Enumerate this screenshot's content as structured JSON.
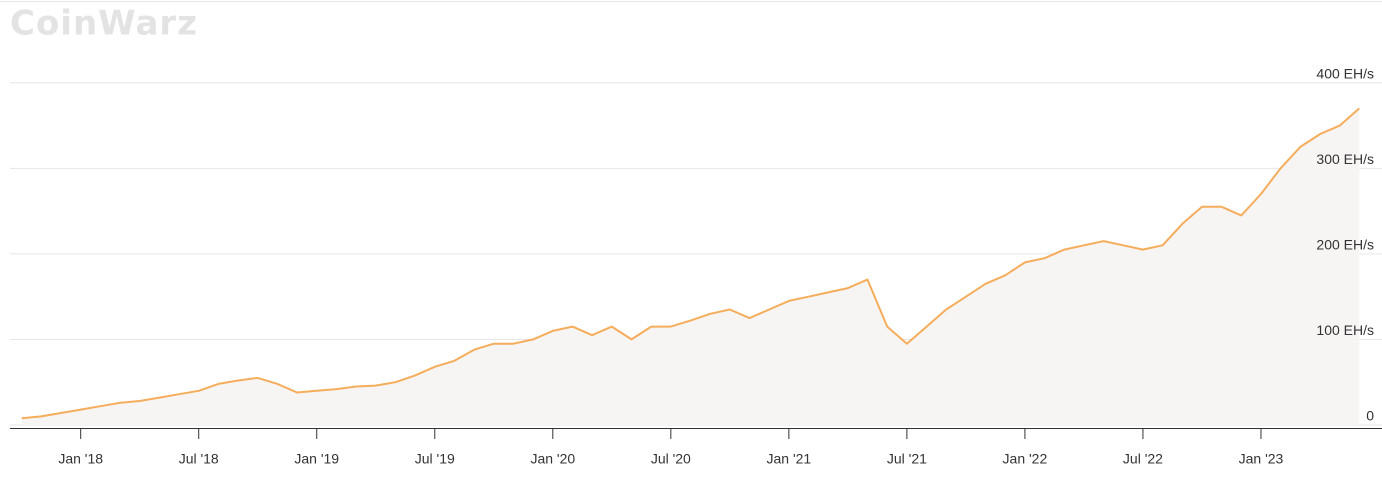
{
  "chart_data": {
    "type": "area",
    "watermark": "CoinWarz",
    "x": [
      "2017-10",
      "2017-11",
      "2017-12",
      "2018-01",
      "2018-02",
      "2018-03",
      "2018-04",
      "2018-05",
      "2018-06",
      "2018-07",
      "2018-08",
      "2018-09",
      "2018-10",
      "2018-11",
      "2018-12",
      "2019-01",
      "2019-02",
      "2019-03",
      "2019-04",
      "2019-05",
      "2019-06",
      "2019-07",
      "2019-08",
      "2019-09",
      "2019-10",
      "2019-11",
      "2019-12",
      "2020-01",
      "2020-02",
      "2020-03",
      "2020-04",
      "2020-05",
      "2020-06",
      "2020-07",
      "2020-08",
      "2020-09",
      "2020-10",
      "2020-11",
      "2020-12",
      "2021-01",
      "2021-02",
      "2021-03",
      "2021-04",
      "2021-05",
      "2021-06",
      "2021-07",
      "2021-08",
      "2021-09",
      "2021-10",
      "2021-11",
      "2021-12",
      "2022-01",
      "2022-02",
      "2022-03",
      "2022-04",
      "2022-05",
      "2022-06",
      "2022-07",
      "2022-08",
      "2022-09",
      "2022-10",
      "2022-11",
      "2022-12",
      "2023-01",
      "2023-02",
      "2023-03",
      "2023-04",
      "2023-05",
      "2023-06"
    ],
    "series": [
      {
        "color": "#f5ad5b",
        "values": [
          8,
          10,
          14,
          18,
          22,
          26,
          28,
          32,
          36,
          40,
          48,
          52,
          55,
          48,
          38,
          40,
          42,
          45,
          46,
          50,
          58,
          68,
          75,
          88,
          95,
          95,
          100,
          110,
          115,
          105,
          115,
          100,
          115,
          115,
          122,
          130,
          135,
          125,
          135,
          145,
          150,
          155,
          160,
          170,
          115,
          95,
          115,
          135,
          150,
          165,
          175,
          190,
          195,
          205,
          210,
          215,
          210,
          205,
          210,
          235,
          255,
          255,
          245,
          270,
          300,
          325,
          340,
          350,
          370
        ]
      }
    ],
    "area_color": "#f7f5f4",
    "xlim": [
      "2017-09",
      "2023-07"
    ],
    "xticks": [
      {
        "value": "2018-01",
        "label": "Jan '18"
      },
      {
        "value": "2018-07",
        "label": "Jul '18"
      },
      {
        "value": "2019-01",
        "label": "Jan '19"
      },
      {
        "value": "2019-07",
        "label": "Jul '19"
      },
      {
        "value": "2020-01",
        "label": "Jan '20"
      },
      {
        "value": "2020-07",
        "label": "Jul '20"
      },
      {
        "value": "2021-01",
        "label": "Jan '21"
      },
      {
        "value": "2021-07",
        "label": "Jul '21"
      },
      {
        "value": "2022-01",
        "label": "Jan '22"
      },
      {
        "value": "2022-07",
        "label": "Jul '22"
      },
      {
        "value": "2023-01",
        "label": "Jan '23"
      }
    ],
    "ylim": [
      0,
      450
    ],
    "yticks": [
      0,
      {
        "value": 100,
        "label": "100 EH/s"
      },
      {
        "value": 200,
        "label": "200 EH/s"
      },
      {
        "value": 300,
        "label": "300 EH/s"
      },
      {
        "value": 400,
        "label": "400 EH/s"
      }
    ],
    "grid": true
  }
}
